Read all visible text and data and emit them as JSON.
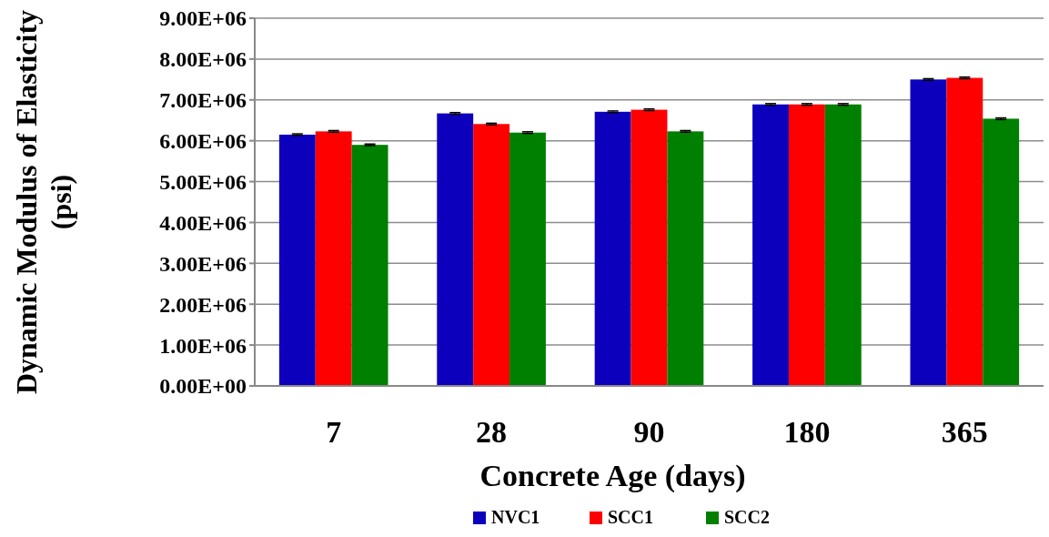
{
  "chart_data": {
    "type": "bar",
    "xlabel": "Concrete Age (days)",
    "ylabel": "Dynamic Modulus of Elasticity (psi)",
    "categories": [
      "7",
      "28",
      "90",
      "180",
      "365"
    ],
    "series": [
      {
        "name": "NVC1",
        "color": "#0c00bd",
        "values": [
          6150000,
          6670000,
          6710000,
          6890000,
          7500000
        ],
        "errors": [
          20000,
          20000,
          20000,
          20000,
          20000
        ]
      },
      {
        "name": "SCC1",
        "color": "#ff0000",
        "values": [
          6230000,
          6410000,
          6760000,
          6890000,
          7540000
        ],
        "errors": [
          20000,
          20000,
          20000,
          20000,
          20000
        ]
      },
      {
        "name": "SCC2",
        "color": "#008000",
        "values": [
          5900000,
          6200000,
          6230000,
          6890000,
          6540000
        ],
        "errors": [
          20000,
          20000,
          20000,
          20000,
          20000
        ]
      }
    ],
    "ylim": [
      0,
      9000000
    ],
    "yticks": [
      {
        "value": 0,
        "label": "0.00E+00"
      },
      {
        "value": 1000000,
        "label": "1.00E+06"
      },
      {
        "value": 2000000,
        "label": "2.00E+06"
      },
      {
        "value": 3000000,
        "label": "3.00E+06"
      },
      {
        "value": 4000000,
        "label": "4.00E+06"
      },
      {
        "value": 5000000,
        "label": "5.00E+06"
      },
      {
        "value": 6000000,
        "label": "6.00E+06"
      },
      {
        "value": 7000000,
        "label": "7.00E+06"
      },
      {
        "value": 8000000,
        "label": "8.00E+06"
      },
      {
        "value": 9000000,
        "label": "9.00E+06"
      }
    ],
    "grid": "y",
    "legend": "bottom"
  }
}
